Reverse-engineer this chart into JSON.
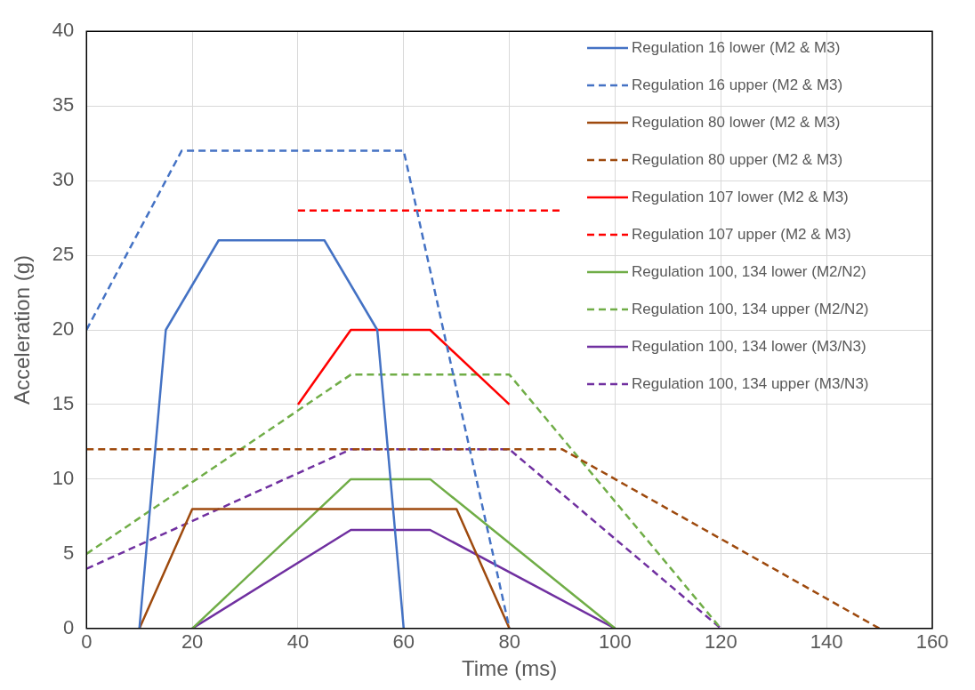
{
  "chart_data": {
    "type": "line",
    "xlabel": "Time (ms)",
    "ylabel": "Acceleration (g)",
    "xlim": [
      0,
      160
    ],
    "xticks": [
      0,
      20,
      40,
      60,
      80,
      100,
      120,
      140,
      160
    ],
    "ylim": [
      0,
      40
    ],
    "yticks": [
      0,
      5,
      10,
      15,
      20,
      25,
      30,
      35,
      40
    ],
    "grid": true,
    "legend": "top right",
    "marker": "none",
    "series": [
      {
        "name": "Regulation 16 lower (M2 & M3)",
        "color": "#4472c4",
        "line_style": "solid",
        "x": [
          10,
          15,
          25,
          45,
          55,
          60
        ],
        "values": [
          0,
          20,
          26,
          26,
          20,
          0
        ]
      },
      {
        "name": "Regulation 16 upper (M2 & M3)",
        "color": "#4472c4",
        "line_style": "dashed",
        "x": [
          0,
          18,
          60,
          80
        ],
        "values": [
          20,
          32,
          32,
          0
        ]
      },
      {
        "name": "Regulation 80 lower (M2 & M3)",
        "color": "#9e4a0e",
        "line_style": "solid",
        "x": [
          10,
          20,
          70,
          80
        ],
        "values": [
          0,
          8,
          8,
          0
        ]
      },
      {
        "name": "Regulation 80 upper (M2 & M3)",
        "color": "#9e4a0e",
        "line_style": "dashed",
        "x": [
          0,
          90,
          150
        ],
        "values": [
          12,
          12,
          0
        ]
      },
      {
        "name": "Regulation 107 lower (M2 & M3)",
        "color": "#ff0000",
        "line_style": "solid",
        "x": [
          40,
          50,
          65,
          80
        ],
        "values": [
          15,
          20,
          20,
          15
        ]
      },
      {
        "name": "Regulation 107 upper (M2 & M3)",
        "color": "#ff0000",
        "line_style": "dashed",
        "x": [
          40,
          90
        ],
        "values": [
          28,
          28
        ]
      },
      {
        "name": "Regulation 100, 134 lower (M2/N2)",
        "color": "#70ad47",
        "line_style": "solid",
        "x": [
          20,
          50,
          65,
          100
        ],
        "values": [
          0,
          10,
          10,
          0
        ]
      },
      {
        "name": "Regulation 100, 134 upper (M2/N2)",
        "color": "#70ad47",
        "line_style": "dashed",
        "x": [
          0,
          50,
          80,
          120
        ],
        "values": [
          5,
          17,
          17,
          0
        ]
      },
      {
        "name": "Regulation 100, 134 lower (M3/N3)",
        "color": "#7030a0",
        "line_style": "solid",
        "x": [
          20,
          50,
          65,
          100
        ],
        "values": [
          0,
          6.6,
          6.6,
          0
        ]
      },
      {
        "name": "Regulation 100, 134 upper (M3/N3)",
        "color": "#7030a0",
        "line_style": "dashed",
        "x": [
          0,
          50,
          80,
          120
        ],
        "values": [
          4,
          12,
          12,
          0
        ]
      }
    ]
  }
}
